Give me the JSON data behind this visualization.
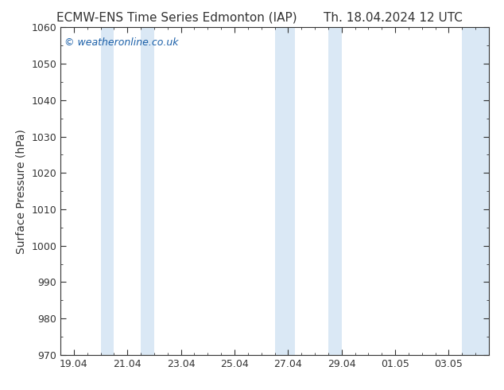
{
  "title_left": "ECMW-ENS Time Series Edmonton (IAP)",
  "title_right": "Th. 18.04.2024 12 UTC",
  "ylabel": "Surface Pressure (hPa)",
  "watermark": "© weatheronline.co.uk",
  "ylim": [
    970,
    1060
  ],
  "yticks": [
    970,
    980,
    990,
    1000,
    1010,
    1020,
    1030,
    1040,
    1050,
    1060
  ],
  "x_tick_labels": [
    "19.04",
    "21.04",
    "23.04",
    "25.04",
    "27.04",
    "29.04",
    "01.05",
    "03.05"
  ],
  "x_tick_positions": [
    0,
    2,
    4,
    6,
    8,
    10,
    12,
    14
  ],
  "xlim": [
    -0.5,
    15.5
  ],
  "shaded_bands": [
    {
      "x_start": 1.0,
      "x_end": 1.5,
      "color": "#ddeeff"
    },
    {
      "x_start": 2.5,
      "x_end": 3.0,
      "color": "#ddeeff"
    },
    {
      "x_start": 7.5,
      "x_end": 8.5,
      "color": "#ddeeff"
    },
    {
      "x_start": 9.5,
      "x_end": 10.0,
      "color": "#ddeeff"
    },
    {
      "x_start": 14.5,
      "x_end": 15.5,
      "color": "#ddeeff"
    }
  ],
  "background_color": "#ffffff",
  "plot_bg_color": "#ffffff",
  "title_fontsize": 11,
  "watermark_color": "#1a5fa8",
  "ylabel_fontsize": 10,
  "tick_fontsize": 9
}
